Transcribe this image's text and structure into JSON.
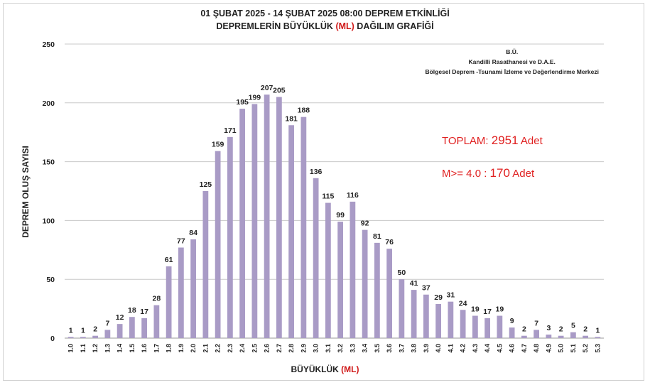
{
  "title": {
    "line1": "01 ŞUBAT 2025 - 14 ŞUBAT 2025 08:00  DEPREM ETKİNLİĞİ",
    "line2_prefix": "DEPREMLERİN BÜYÜKLÜK",
    "line2_unit": "(ML)",
    "line2_suffix": "DAĞILIM GRAFİĞİ"
  },
  "source": {
    "line1": "B.Ü.",
    "line2": "Kandilli Rasathanesi ve D.A.E.",
    "line3": "Bölgesel Deprem -Tsunami İzleme ve Değerlendirme Merkezi"
  },
  "totals": {
    "total_label": "TOPLAM:",
    "total_value": "2951",
    "total_unit": "Adet",
    "m4_label": "M>= 4.0 :",
    "m4_value": "170",
    "m4_unit": "Adet"
  },
  "colors": {
    "bar": "#a99bc6",
    "grid": "#c8c8c8",
    "accent": "#e02020"
  },
  "chart_data": {
    "type": "bar",
    "xlabel": "BÜYÜKLÜK",
    "xlabel_unit": "(ML)",
    "ylabel": "DEPREM OLUŞ SAYISI",
    "ylim": [
      0,
      250
    ],
    "yticks": [
      0,
      50,
      100,
      150,
      200,
      250
    ],
    "grid": true,
    "categories": [
      "1.0",
      "1.1",
      "1.2",
      "1.3",
      "1.4",
      "1.5",
      "1.6",
      "1.7",
      "1.8",
      "1.9",
      "2.0",
      "2.1",
      "2.2",
      "2.3",
      "2.4",
      "2.5",
      "2.6",
      "2.7",
      "2.8",
      "2.9",
      "3.0",
      "3.1",
      "3.2",
      "3.3",
      "3.4",
      "3.5",
      "3.6",
      "3.7",
      "3.8",
      "3.9",
      "4.0",
      "4.1",
      "4.2",
      "4.3",
      "4.4",
      "4.5",
      "4.6",
      "4.7",
      "4.8",
      "4.9",
      "5.0",
      "5.1",
      "5.2",
      "5.3"
    ],
    "values": [
      1,
      1,
      2,
      7,
      12,
      18,
      17,
      28,
      61,
      77,
      84,
      125,
      159,
      171,
      195,
      199,
      207,
      205,
      181,
      188,
      136,
      115,
      99,
      116,
      92,
      81,
      76,
      50,
      41,
      37,
      29,
      31,
      24,
      19,
      17,
      19,
      9,
      2,
      7,
      3,
      2,
      5,
      2,
      1
    ]
  }
}
